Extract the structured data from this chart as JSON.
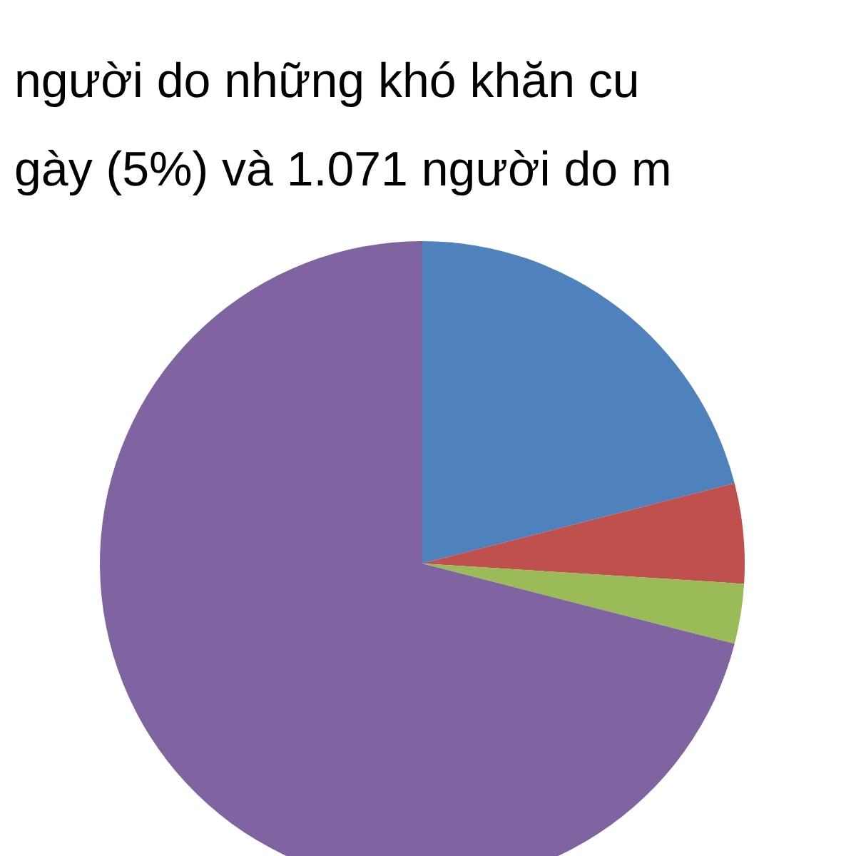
{
  "chart_data": {
    "type": "pie",
    "annotations": [
      "người do những khó khăn cu",
      "gày (5%) và 1.071 người do m"
    ],
    "categories": [
      null,
      null,
      null,
      null
    ],
    "values": [
      21,
      5,
      3,
      71
    ],
    "colors": [
      "#4f81bd",
      "#c0504d",
      "#9bbb59",
      "#8064a2"
    ]
  }
}
